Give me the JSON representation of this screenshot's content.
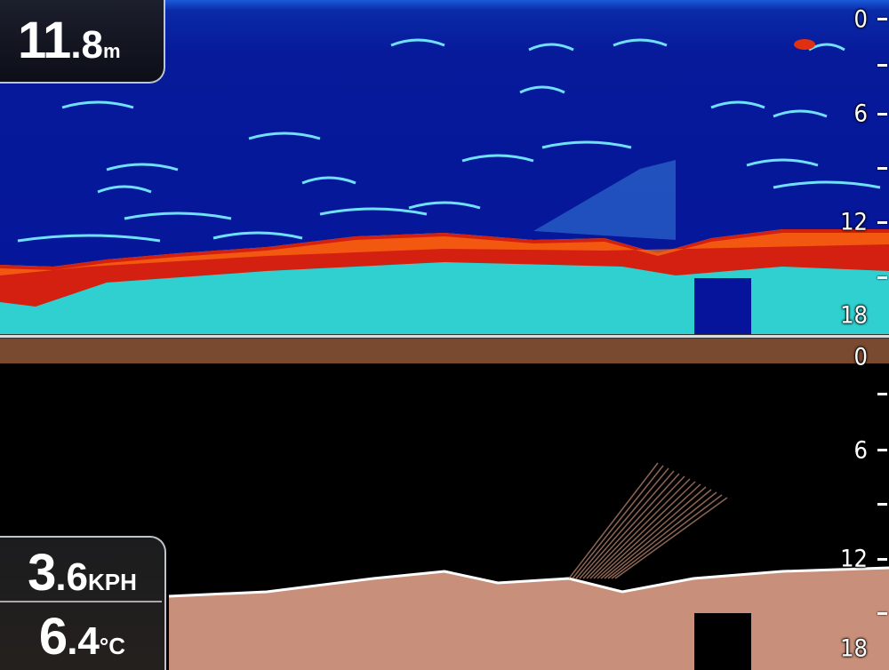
{
  "depth_readout": {
    "integer": "11",
    "decimal": ".8",
    "unit": "m"
  },
  "speed_readout": {
    "integer": "3",
    "decimal": ".6",
    "unit": "KPH"
  },
  "temperature_readout": {
    "integer": "6",
    "decimal": ".4",
    "unit": "°C"
  },
  "upper_panel": {
    "mode": "CHIRP sonar",
    "depth_scale": [
      "0",
      "6",
      "12",
      "18"
    ]
  },
  "lower_panel": {
    "mode": "DownVision",
    "depth_scale": [
      "0",
      "6",
      "12",
      "18"
    ]
  },
  "colors": {
    "water_blue": "#05159a",
    "bottom_red": "#d42010",
    "bottom_cyan": "#30d0d0",
    "downvision_bottom": "#c8907a",
    "readout_bg": "#1c1f2c"
  }
}
